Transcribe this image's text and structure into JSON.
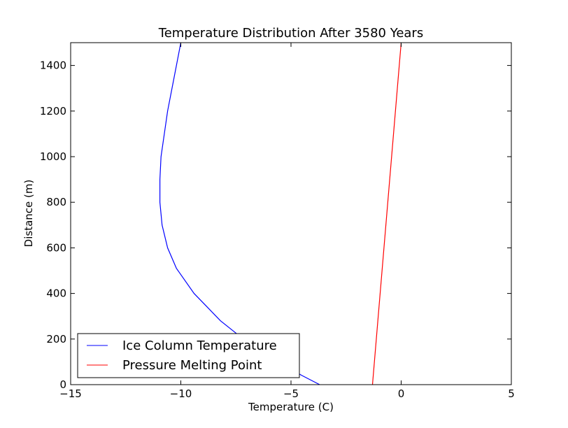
{
  "chart_data": {
    "type": "line",
    "title": "Temperature Distribution After 3580 Years",
    "xlabel": "Temperature (C)",
    "ylabel": "Distance (m)",
    "xlim": [
      -15,
      5
    ],
    "ylim": [
      0,
      1500
    ],
    "xticks": [
      -15,
      -10,
      -5,
      0,
      5
    ],
    "xtick_labels": [
      "−15",
      "−10",
      "−5",
      "0",
      "5"
    ],
    "yticks": [
      0,
      200,
      400,
      600,
      800,
      1000,
      1200,
      1400
    ],
    "ytick_labels": [
      "0",
      "200",
      "400",
      "600",
      "800",
      "1000",
      "1200",
      "1400"
    ],
    "grid": false,
    "legend_position": "lower-left",
    "series": [
      {
        "name": "Ice Column Temperature",
        "color": "#0000ff",
        "points": [
          {
            "x": -3.7,
            "y": 0
          },
          {
            "x": -4.5,
            "y": 40
          },
          {
            "x": -5.6,
            "y": 100
          },
          {
            "x": -6.9,
            "y": 180
          },
          {
            "x": -8.2,
            "y": 280
          },
          {
            "x": -9.4,
            "y": 400
          },
          {
            "x": -10.2,
            "y": 510
          },
          {
            "x": -10.6,
            "y": 600
          },
          {
            "x": -10.85,
            "y": 700
          },
          {
            "x": -10.95,
            "y": 800
          },
          {
            "x": -10.95,
            "y": 900
          },
          {
            "x": -10.9,
            "y": 1000
          },
          {
            "x": -10.75,
            "y": 1100
          },
          {
            "x": -10.6,
            "y": 1200
          },
          {
            "x": -10.4,
            "y": 1300
          },
          {
            "x": -10.2,
            "y": 1400
          },
          {
            "x": -10.0,
            "y": 1500
          }
        ]
      },
      {
        "name": "Pressure Melting Point",
        "color": "#ff0000",
        "points": [
          {
            "x": -1.3,
            "y": 0
          },
          {
            "x": 0.0,
            "y": 1500
          }
        ]
      }
    ]
  }
}
